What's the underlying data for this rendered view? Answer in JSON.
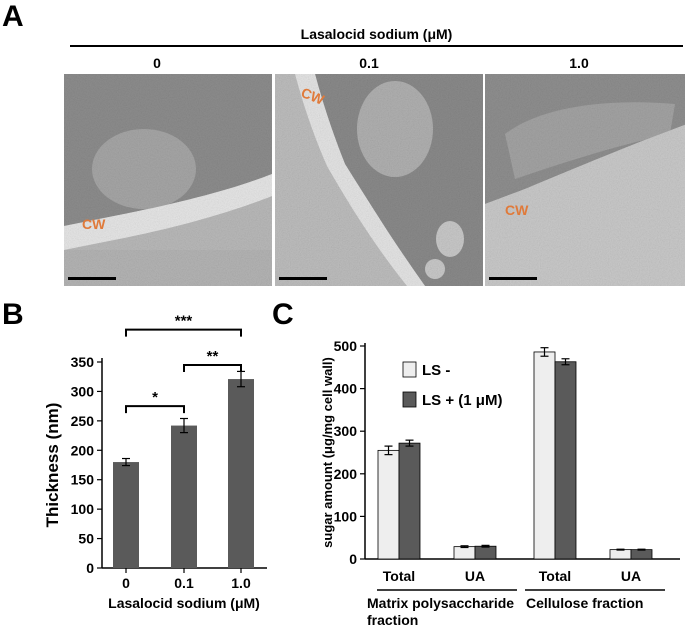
{
  "panels": {
    "a": "A",
    "b": "B",
    "c": "C"
  },
  "panel_a": {
    "title": "Lasalocid sodium (μM)",
    "columns": [
      "0",
      "0.1",
      "1.0"
    ],
    "cw_label": "CW"
  },
  "chart_data": [
    {
      "type": "bar",
      "categories": [
        "0",
        "0.1",
        "1.0"
      ],
      "values": [
        180,
        242,
        321
      ],
      "errors": [
        6,
        12,
        13
      ],
      "xlabel": "Lasalocid sodium (μM)",
      "ylabel": "Thickness (nm)",
      "ylim": [
        0,
        350
      ],
      "yticks": [
        "0",
        "50",
        "100",
        "150",
        "200",
        "250",
        "300",
        "350"
      ],
      "bar_color": "#5a5a5a",
      "significance": [
        {
          "from": 0,
          "to": 1,
          "label": "*"
        },
        {
          "from": 1,
          "to": 2,
          "label": "**"
        },
        {
          "from": 0,
          "to": 2,
          "label": "***"
        }
      ]
    },
    {
      "type": "bar",
      "categories": [
        "Total",
        "UA",
        "Total",
        "UA"
      ],
      "groups": [
        "Matrix polysaccharide fraction",
        "Cellulose fraction"
      ],
      "group_lines": [
        [
          "Matrix polysaccharide",
          "fraction"
        ],
        [
          "Cellulose fraction"
        ]
      ],
      "series": [
        {
          "name": "LS -",
          "values": [
            255,
            29,
            486,
            22
          ],
          "errors": [
            10,
            2,
            10,
            1
          ],
          "color": "#eeeeee"
        },
        {
          "name": "LS + (1 μM)",
          "values": [
            272,
            30,
            463,
            22
          ],
          "errors": [
            7,
            2,
            7,
            1
          ],
          "color": "#5a5a5a"
        }
      ],
      "ylabel": "sugar amount (μg/mg cell wall)",
      "ylim": [
        0,
        500
      ],
      "yticks": [
        "0",
        "100",
        "200",
        "300",
        "400",
        "500"
      ],
      "legend": "top-left"
    }
  ]
}
